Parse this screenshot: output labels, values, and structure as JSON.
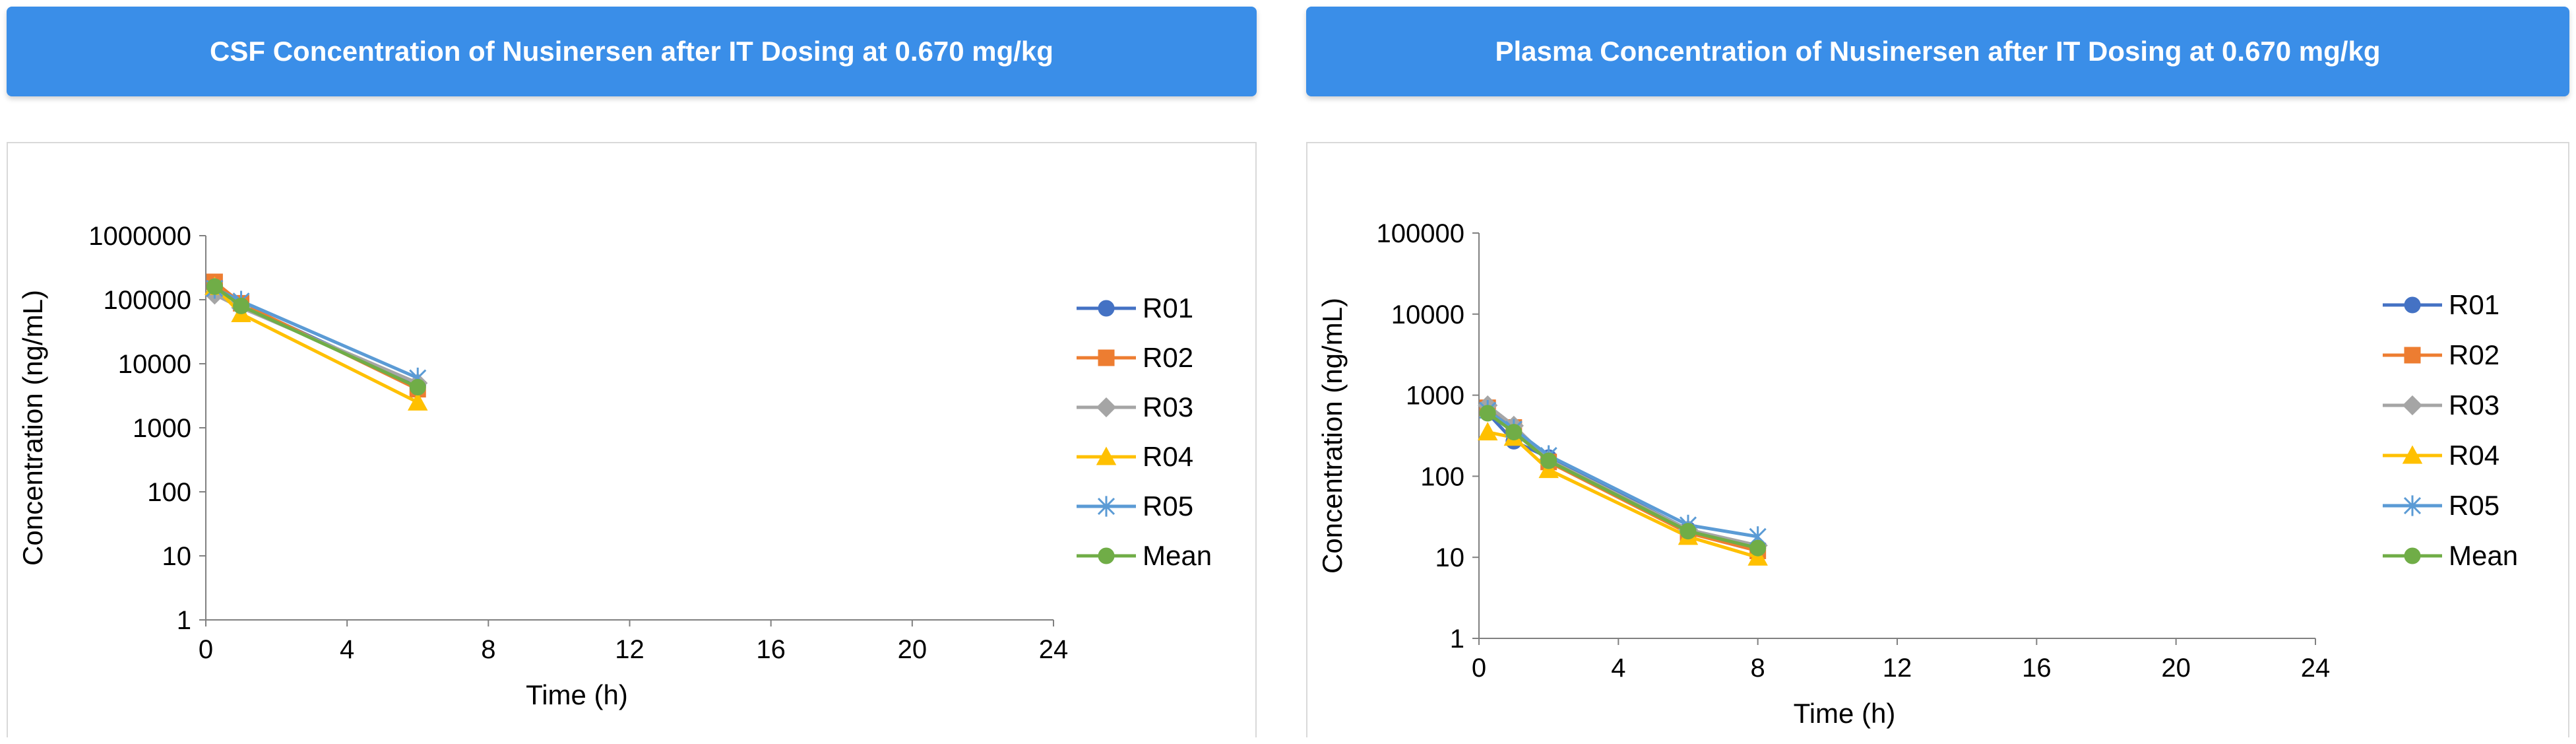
{
  "chart_data": [
    {
      "type": "line",
      "title": "CSF Concentration of Nusinersen after IT  Dosing at 0.670 mg/kg",
      "xlabel": "Time (h)",
      "ylabel": "Concentration (ng/mL)",
      "xlim": [
        0,
        24
      ],
      "ylim": [
        1,
        1000000
      ],
      "yscale": "log",
      "x_ticks": [
        "0",
        "4",
        "8",
        "12",
        "16",
        "20",
        "24"
      ],
      "y_ticks": [
        "1",
        "10",
        "100",
        "1000",
        "10000",
        "100000",
        "1000000"
      ],
      "legend_position": "right",
      "grid": false,
      "series": [
        {
          "name": "R01",
          "color": "#4472c4",
          "marker": "circle",
          "x": [
            0.25,
            1,
            6
          ],
          "y": [
            170000,
            85000,
            4500
          ]
        },
        {
          "name": "R02",
          "color": "#ed7d31",
          "marker": "square",
          "x": [
            0.25,
            1,
            6
          ],
          "y": [
            190000,
            88000,
            4000
          ]
        },
        {
          "name": "R03",
          "color": "#a5a5a5",
          "marker": "diamond",
          "x": [
            0.25,
            1,
            6
          ],
          "y": [
            120000,
            75000,
            5000
          ]
        },
        {
          "name": "R04",
          "color": "#ffc000",
          "marker": "triangle",
          "x": [
            0.25,
            1,
            6
          ],
          "y": [
            160000,
            60000,
            2500
          ]
        },
        {
          "name": "R05",
          "color": "#5b9bd5",
          "marker": "star",
          "x": [
            0.25,
            1,
            6
          ],
          "y": [
            150000,
            95000,
            6000
          ]
        },
        {
          "name": "Mean",
          "color": "#70ad47",
          "marker": "circle",
          "x": [
            0.25,
            1,
            6
          ],
          "y": [
            160000,
            80000,
            4300
          ]
        }
      ]
    },
    {
      "type": "line",
      "title": "Plasma Concentration of Nusinersen after IT  Dosing at 0.670 mg/kg",
      "xlabel": "Time (h)",
      "ylabel": "Concentration (ng/mL)",
      "xlim": [
        0,
        24
      ],
      "ylim": [
        1,
        100000
      ],
      "yscale": "log",
      "x_ticks": [
        "0",
        "4",
        "8",
        "12",
        "16",
        "20",
        "24"
      ],
      "y_ticks": [
        "1",
        "10",
        "100",
        "1000",
        "10000",
        "100000"
      ],
      "legend_position": "right",
      "grid": false,
      "series": [
        {
          "name": "R01",
          "color": "#4472c4",
          "marker": "circle",
          "x": [
            0.25,
            1,
            2,
            6,
            8
          ],
          "y": [
            600,
            270,
            170,
            22,
            13
          ]
        },
        {
          "name": "R02",
          "color": "#ed7d31",
          "marker": "square",
          "x": [
            0.25,
            1,
            2,
            6,
            8
          ],
          "y": [
            700,
            400,
            150,
            20,
            12
          ]
        },
        {
          "name": "R03",
          "color": "#a5a5a5",
          "marker": "diamond",
          "x": [
            0.25,
            1,
            2,
            6,
            8
          ],
          "y": [
            750,
            420,
            160,
            22,
            14
          ]
        },
        {
          "name": "R04",
          "color": "#ffc000",
          "marker": "triangle",
          "x": [
            0.25,
            1,
            2,
            6,
            8
          ],
          "y": [
            350,
            300,
            120,
            18,
            10
          ]
        },
        {
          "name": "R05",
          "color": "#5b9bd5",
          "marker": "star",
          "x": [
            0.25,
            1,
            2,
            6,
            8
          ],
          "y": [
            650,
            380,
            180,
            25,
            18
          ]
        },
        {
          "name": "Mean",
          "color": "#70ad47",
          "marker": "circle",
          "x": [
            0.25,
            1,
            2,
            6,
            8
          ],
          "y": [
            600,
            350,
            155,
            21,
            13
          ]
        }
      ]
    }
  ]
}
